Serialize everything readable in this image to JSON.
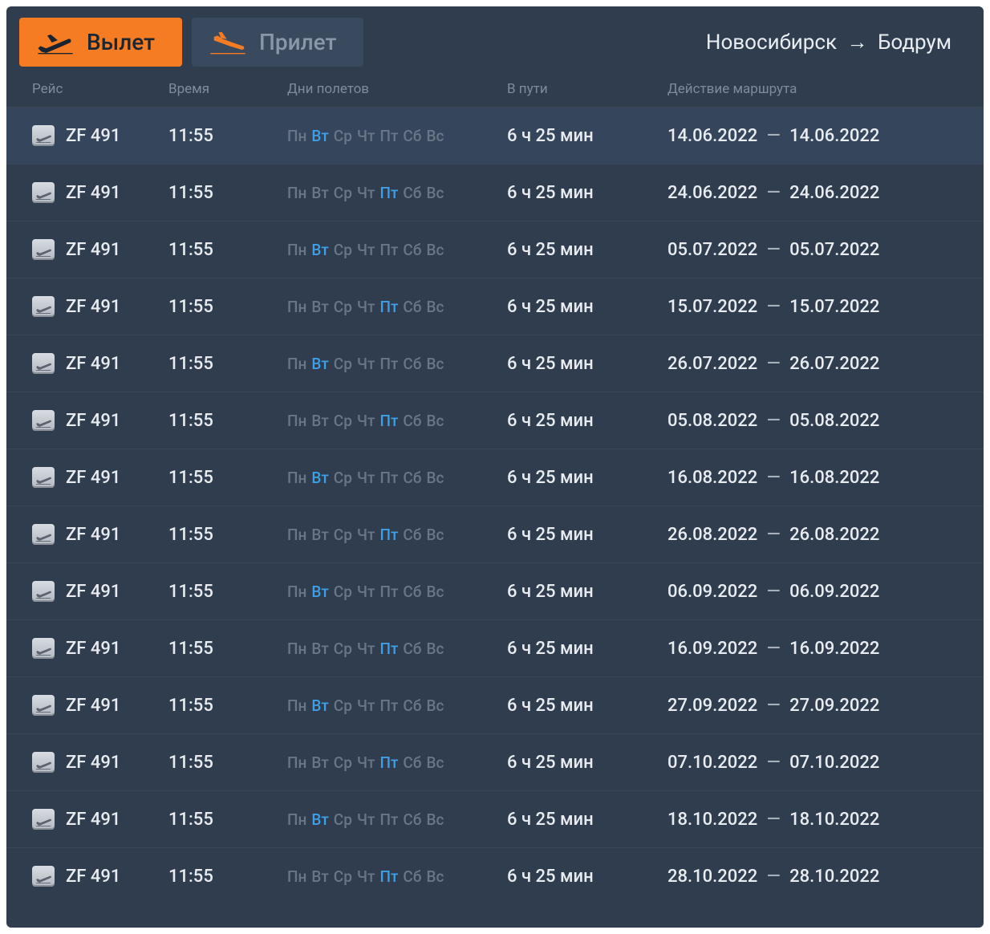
{
  "colors": {
    "board_bg": "#2f3d4e",
    "row_highlight_bg": "#35465c",
    "row_border": "#3a4656",
    "tab_active_bg": "#f57c22",
    "tab_active_text": "#1a2634",
    "tab_inactive_bg": "#3a4a5e",
    "tab_inactive_text": "#8a97a8",
    "accent_icon": "#f57c22",
    "text_primary": "#e8ecf1",
    "text_muted": "#7f8b9c",
    "day_off": "#6a7687",
    "day_on": "#3ea0e6"
  },
  "tabs": {
    "departure": "Вылет",
    "arrival": "Прилет"
  },
  "route": {
    "from": "Новосибирск",
    "arrow": "→",
    "to": "Бодрум"
  },
  "columns": {
    "flight": "Рейс",
    "time": "Время",
    "days": "Дни полетов",
    "duration": "В пути",
    "range": "Действие маршрута"
  },
  "day_labels": [
    "Пн",
    "Вт",
    "Ср",
    "Чт",
    "Пт",
    "Сб",
    "Вс"
  ],
  "range_dash": "—",
  "flights": [
    {
      "code": "ZF 491",
      "time": "11:55",
      "days_active": [
        1
      ],
      "duration": "6 ч 25 мин",
      "from_date": "14.06.2022",
      "to_date": "14.06.2022"
    },
    {
      "code": "ZF 491",
      "time": "11:55",
      "days_active": [
        4
      ],
      "duration": "6 ч 25 мин",
      "from_date": "24.06.2022",
      "to_date": "24.06.2022"
    },
    {
      "code": "ZF 491",
      "time": "11:55",
      "days_active": [
        1
      ],
      "duration": "6 ч 25 мин",
      "from_date": "05.07.2022",
      "to_date": "05.07.2022"
    },
    {
      "code": "ZF 491",
      "time": "11:55",
      "days_active": [
        4
      ],
      "duration": "6 ч 25 мин",
      "from_date": "15.07.2022",
      "to_date": "15.07.2022"
    },
    {
      "code": "ZF 491",
      "time": "11:55",
      "days_active": [
        1
      ],
      "duration": "6 ч 25 мин",
      "from_date": "26.07.2022",
      "to_date": "26.07.2022"
    },
    {
      "code": "ZF 491",
      "time": "11:55",
      "days_active": [
        4
      ],
      "duration": "6 ч 25 мин",
      "from_date": "05.08.2022",
      "to_date": "05.08.2022"
    },
    {
      "code": "ZF 491",
      "time": "11:55",
      "days_active": [
        1
      ],
      "duration": "6 ч 25 мин",
      "from_date": "16.08.2022",
      "to_date": "16.08.2022"
    },
    {
      "code": "ZF 491",
      "time": "11:55",
      "days_active": [
        4
      ],
      "duration": "6 ч 25 мин",
      "from_date": "26.08.2022",
      "to_date": "26.08.2022"
    },
    {
      "code": "ZF 491",
      "time": "11:55",
      "days_active": [
        1
      ],
      "duration": "6 ч 25 мин",
      "from_date": "06.09.2022",
      "to_date": "06.09.2022"
    },
    {
      "code": "ZF 491",
      "time": "11:55",
      "days_active": [
        4
      ],
      "duration": "6 ч 25 мин",
      "from_date": "16.09.2022",
      "to_date": "16.09.2022"
    },
    {
      "code": "ZF 491",
      "time": "11:55",
      "days_active": [
        1
      ],
      "duration": "6 ч 25 мин",
      "from_date": "27.09.2022",
      "to_date": "27.09.2022"
    },
    {
      "code": "ZF 491",
      "time": "11:55",
      "days_active": [
        4
      ],
      "duration": "6 ч 25 мин",
      "from_date": "07.10.2022",
      "to_date": "07.10.2022"
    },
    {
      "code": "ZF 491",
      "time": "11:55",
      "days_active": [
        1
      ],
      "duration": "6 ч 25 мин",
      "from_date": "18.10.2022",
      "to_date": "18.10.2022"
    },
    {
      "code": "ZF 491",
      "time": "11:55",
      "days_active": [
        4
      ],
      "duration": "6 ч 25 мин",
      "from_date": "28.10.2022",
      "to_date": "28.10.2022"
    }
  ]
}
